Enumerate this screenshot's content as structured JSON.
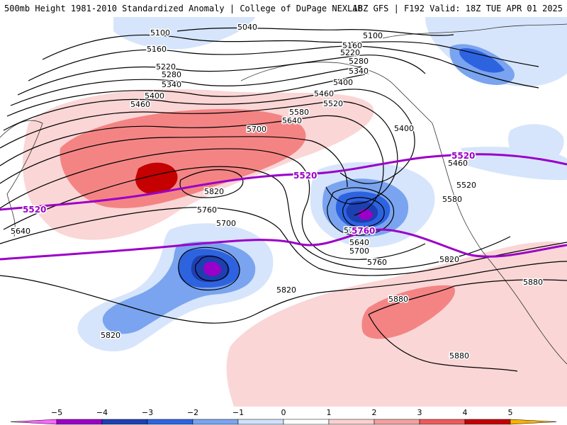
{
  "header": {
    "left": "500mb Height 1981-2010 Standardized Anomaly | College of DuPage NEXLAB",
    "right": "18Z GFS | F192 Valid: 18Z TUE APR 01 2025"
  },
  "contours": {
    "labels": [
      "5040",
      "5100",
      "5100",
      "5160",
      "5160",
      "5220",
      "5220",
      "5280",
      "5280",
      "5340",
      "5340",
      "5400",
      "5400",
      "5400",
      "5460",
      "5460",
      "5460",
      "5520",
      "5520",
      "5580",
      "5580",
      "5640",
      "5640",
      "5640",
      "5700",
      "5700",
      "5700",
      "5760",
      "5760",
      "5760",
      "5820",
      "5820",
      "5820",
      "5820",
      "5880",
      "5880",
      "5880"
    ],
    "highlight_labels": [
      "5520",
      "5520",
      "5520",
      "5760"
    ]
  },
  "colorbar": {
    "ticks": [
      "−5",
      "−4",
      "−3",
      "−2",
      "−1",
      "0",
      "1",
      "2",
      "3",
      "4",
      "5"
    ],
    "colors": [
      "#ff66ff",
      "#9a00c8",
      "#1d3fb0",
      "#2e63e0",
      "#7aa4ef",
      "#cfe0fb",
      "#ffffff",
      "#fbd0d0",
      "#f4a0a0",
      "#ee5a5a",
      "#c40000",
      "#ffb000"
    ]
  }
}
